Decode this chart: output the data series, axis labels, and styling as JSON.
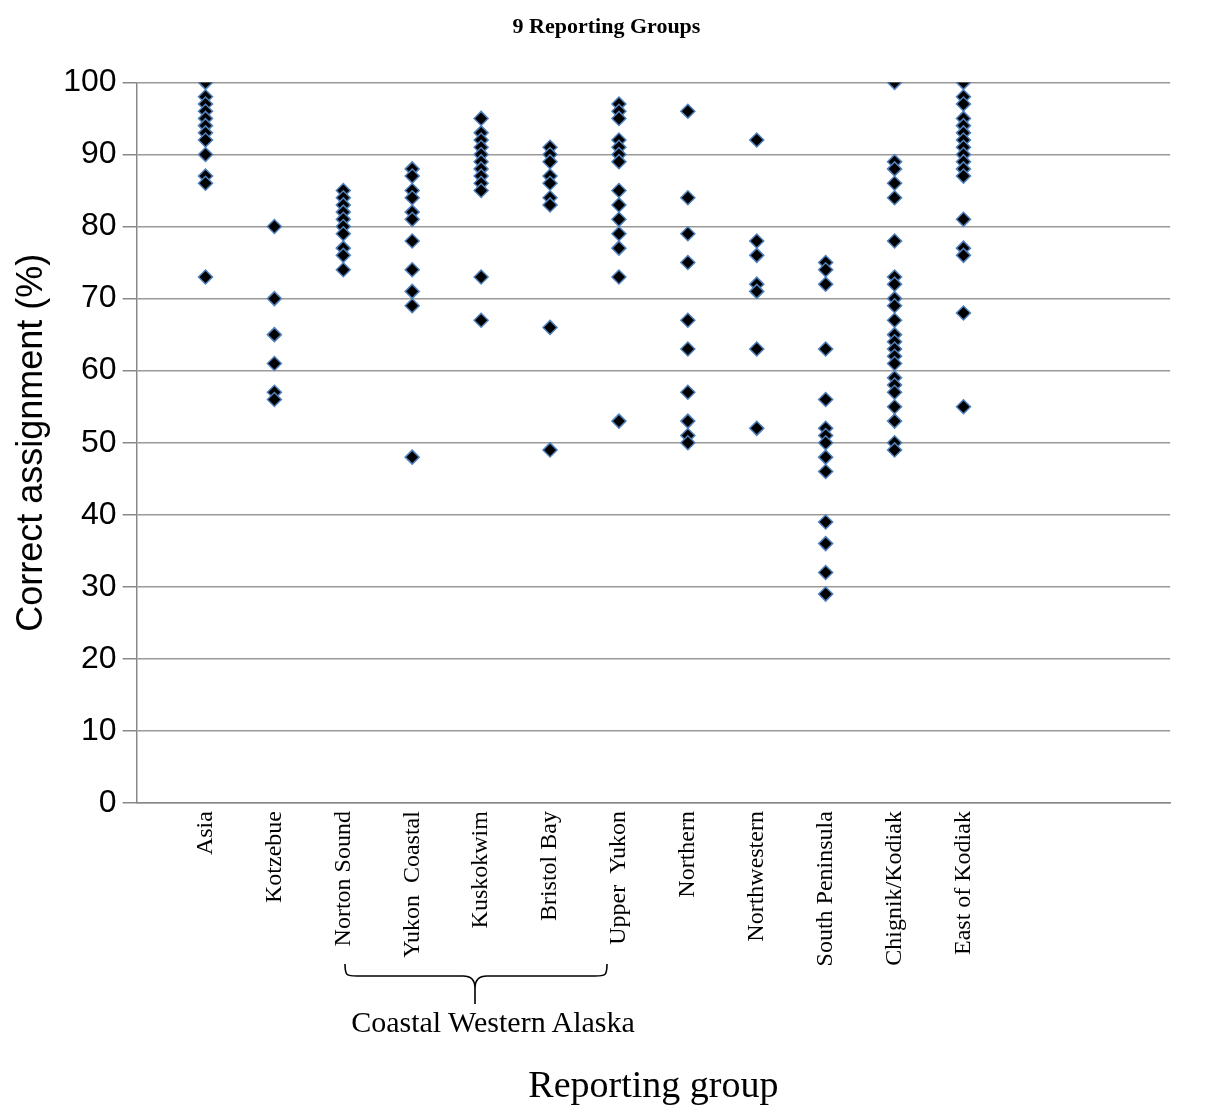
{
  "chart_data": {
    "type": "scatter",
    "title": "9 Reporting Groups",
    "xlabel": "Reporting group",
    "ylabel": "Correct assignment (%)",
    "categories": [
      null,
      "Asia",
      "Kotzebue",
      "Norton Sound",
      "Yukon  Coastal",
      "Kuskokwim",
      "Bristol Bay",
      "Upper  Yukon",
      "Northern",
      "Northwestern",
      "South Peninsula",
      "Chignik/Kodiak",
      "East of Kodiak",
      null,
      null,
      null
    ],
    "series": [
      {
        "color": "#000000",
        "x": [
          "Asia",
          "Asia",
          "Asia",
          "Asia",
          "Asia",
          "Asia",
          "Asia",
          "Asia",
          "Asia",
          "Asia",
          "Asia",
          "Asia",
          "Kotzebue",
          "Kotzebue",
          "Kotzebue",
          "Kotzebue",
          "Kotzebue",
          "Kotzebue",
          "Norton Sound",
          "Norton Sound",
          "Norton Sound",
          "Norton Sound",
          "Norton Sound",
          "Norton Sound",
          "Norton Sound",
          "Norton Sound",
          "Norton Sound",
          "Norton Sound",
          "Yukon  Coastal",
          "Yukon  Coastal",
          "Yukon  Coastal",
          "Yukon  Coastal",
          "Yukon  Coastal",
          "Yukon  Coastal",
          "Yukon  Coastal",
          "Yukon  Coastal",
          "Yukon  Coastal",
          "Yukon  Coastal",
          "Yukon  Coastal",
          "Kuskokwim",
          "Kuskokwim",
          "Kuskokwim",
          "Kuskokwim",
          "Kuskokwim",
          "Kuskokwim",
          "Kuskokwim",
          "Kuskokwim",
          "Kuskokwim",
          "Kuskokwim",
          "Kuskokwim",
          "Kuskokwim",
          "Bristol Bay",
          "Bristol Bay",
          "Bristol Bay",
          "Bristol Bay",
          "Bristol Bay",
          "Bristol Bay",
          "Bristol Bay",
          "Bristol Bay",
          "Bristol Bay",
          "Upper  Yukon",
          "Upper  Yukon",
          "Upper  Yukon",
          "Upper  Yukon",
          "Upper  Yukon",
          "Upper  Yukon",
          "Upper  Yukon",
          "Upper  Yukon",
          "Upper  Yukon",
          "Upper  Yukon",
          "Upper  Yukon",
          "Upper  Yukon",
          "Upper  Yukon",
          "Upper  Yukon",
          "Northern",
          "Northern",
          "Northern",
          "Northern",
          "Northern",
          "Northern",
          "Northern",
          "Northern",
          "Northern",
          "Northern",
          "Northwestern",
          "Northwestern",
          "Northwestern",
          "Northwestern",
          "Northwestern",
          "Northwestern",
          "Northwestern",
          "South Peninsula",
          "South Peninsula",
          "South Peninsula",
          "South Peninsula",
          "South Peninsula",
          "South Peninsula",
          "South Peninsula",
          "South Peninsula",
          "South Peninsula",
          "South Peninsula",
          "South Peninsula",
          "South Peninsula",
          "South Peninsula",
          "South Peninsula",
          "Chignik/Kodiak",
          "Chignik/Kodiak",
          "Chignik/Kodiak",
          "Chignik/Kodiak",
          "Chignik/Kodiak",
          "Chignik/Kodiak",
          "Chignik/Kodiak",
          "Chignik/Kodiak",
          "Chignik/Kodiak",
          "Chignik/Kodiak",
          "Chignik/Kodiak",
          "Chignik/Kodiak",
          "Chignik/Kodiak",
          "Chignik/Kodiak",
          "Chignik/Kodiak",
          "Chignik/Kodiak",
          "Chignik/Kodiak",
          "Chignik/Kodiak",
          "Chignik/Kodiak",
          "Chignik/Kodiak",
          "Chignik/Kodiak",
          "Chignik/Kodiak",
          "Chignik/Kodiak",
          "East of Kodiak",
          "East of Kodiak",
          "East of Kodiak",
          "East of Kodiak",
          "East of Kodiak",
          "East of Kodiak",
          "East of Kodiak",
          "East of Kodiak",
          "East of Kodiak",
          "East of Kodiak",
          "East of Kodiak",
          "East of Kodiak",
          "East of Kodiak",
          "East of Kodiak",
          "East of Kodiak",
          "East of Kodiak",
          "East of Kodiak"
        ],
        "values": [
          100,
          98,
          97,
          96,
          95,
          94,
          93,
          92,
          90,
          87,
          86,
          73,
          80,
          70,
          65,
          61,
          57,
          56,
          85,
          84,
          83,
          82,
          81,
          80,
          79,
          77,
          76,
          74,
          88,
          87,
          85,
          84,
          82,
          81,
          78,
          74,
          71,
          69,
          48,
          95,
          93,
          92,
          91,
          90,
          89,
          88,
          87,
          86,
          85,
          73,
          67,
          91,
          90,
          89,
          87,
          86,
          84,
          83,
          66,
          49,
          97,
          96,
          95,
          92,
          91,
          90,
          89,
          85,
          83,
          81,
          79,
          77,
          73,
          53,
          96,
          84,
          79,
          75,
          67,
          63,
          57,
          53,
          51,
          50,
          92,
          78,
          76,
          72,
          71,
          63,
          52,
          75,
          74,
          72,
          63,
          56,
          52,
          51,
          50,
          48,
          46,
          39,
          36,
          32,
          29,
          100,
          89,
          88,
          86,
          84,
          78,
          73,
          72,
          70,
          69,
          67,
          65,
          64,
          63,
          62,
          61,
          59,
          58,
          57,
          55,
          53,
          50,
          49,
          100,
          98,
          97,
          95,
          94,
          93,
          92,
          91,
          90,
          89,
          88,
          87,
          81,
          77,
          76,
          68,
          55
        ]
      }
    ],
    "ylim": [
      0,
      100
    ],
    "yticks": [
      0,
      10,
      20,
      30,
      40,
      50,
      60,
      70,
      80,
      90,
      100
    ],
    "grid": "y",
    "legend": false,
    "marker": "diamond",
    "annotations": [
      "Coastal Western Alaska"
    ]
  }
}
